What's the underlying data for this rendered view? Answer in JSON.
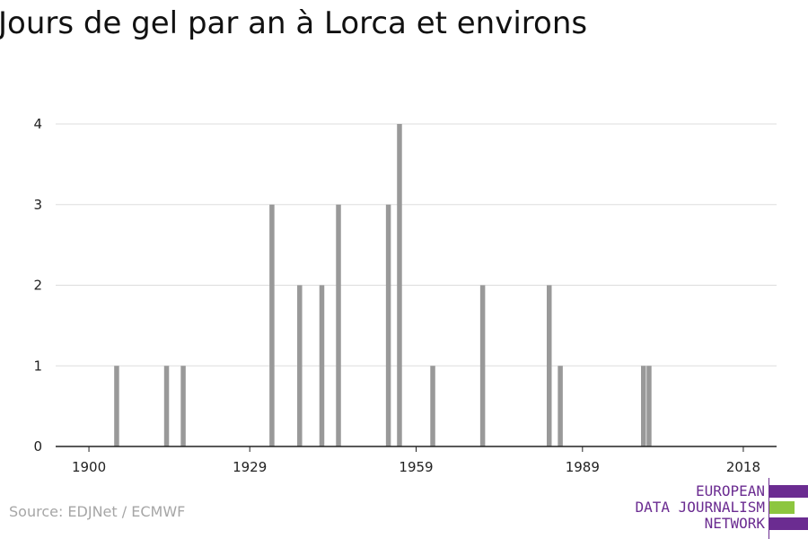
{
  "title": "Jours de gel par an à Lorca et environs",
  "source": "Source: EDJNet / ECMWF",
  "logo": {
    "line1": "EUROPEAN",
    "line2": "DATA JOURNALISM",
    "line3": "NETWORK",
    "colors": {
      "purple": "#6b2c91",
      "green": "#8dc63f"
    }
  },
  "chart_data": {
    "type": "bar",
    "title": "Jours de gel par an à Lorca et environs",
    "xlabel": "",
    "ylabel": "",
    "x_ticks": [
      1900,
      1929,
      1959,
      1989,
      2018
    ],
    "y_ticks": [
      0,
      1,
      2,
      3,
      4
    ],
    "xlim": [
      1894,
      2024
    ],
    "ylim": [
      0,
      4
    ],
    "grid": true,
    "bar_color": "#999999",
    "x": [
      1905,
      1914,
      1917,
      1933,
      1938,
      1942,
      1945,
      1954,
      1956,
      1962,
      1971,
      1983,
      1985,
      2000,
      2001
    ],
    "values": [
      1,
      1,
      1,
      3,
      2,
      2,
      3,
      3,
      4,
      1,
      2,
      2,
      1,
      1,
      1
    ]
  }
}
